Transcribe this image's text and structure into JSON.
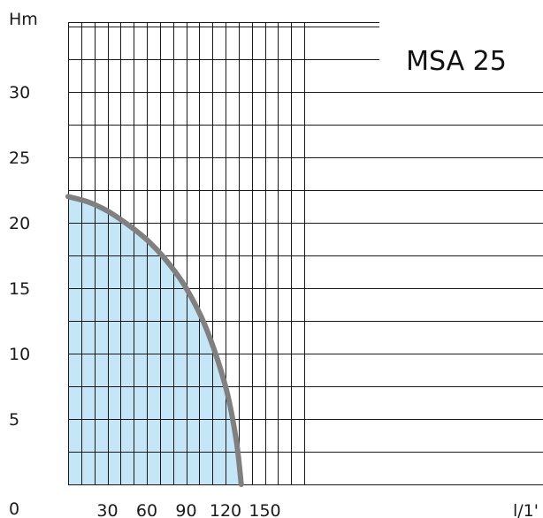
{
  "chart_data": {
    "type": "area",
    "title": "MSA 25",
    "ylabel": "Hm",
    "xlabel": "l/1'",
    "origin_label": "0",
    "x_ticks": [
      "30",
      "60",
      "90",
      "120",
      "150"
    ],
    "y_ticks": [
      "5",
      "10",
      "15",
      "20",
      "25",
      "30"
    ],
    "xlim": [
      0,
      180
    ],
    "ylim": [
      0,
      35
    ],
    "grid": true,
    "x_grid_step": 10,
    "y_grid_step": 2.5,
    "series": [
      {
        "x": [
          0,
          15,
          30,
          45,
          60,
          75,
          90,
          105,
          120,
          128,
          132
        ],
        "y": [
          22,
          21.6,
          20.9,
          19.9,
          18.7,
          17.1,
          15,
          12.0,
          7.5,
          3.5,
          0
        ],
        "values": [
          22,
          21.6,
          20.9,
          19.9,
          18.7,
          17.1,
          15,
          12.0,
          7.5,
          3.5,
          0
        ]
      }
    ],
    "colors": {
      "fill": "#c4e6f6",
      "curve": "#808080",
      "grid": "#1a1a1a"
    }
  }
}
